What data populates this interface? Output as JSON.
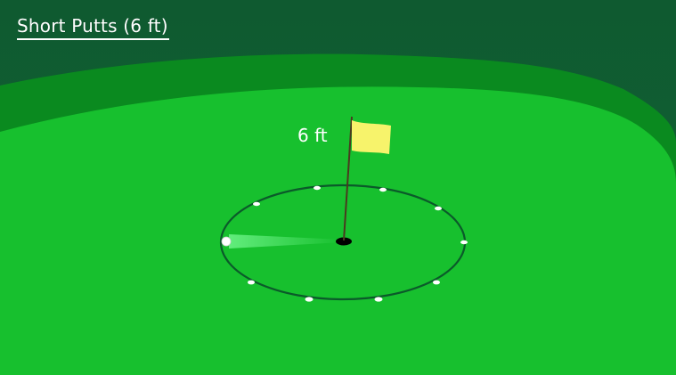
{
  "game": {
    "title": "Short Putts (6 ft)",
    "flag_label": "6 ft"
  },
  "colors": {
    "background": "#0f5a30",
    "fringe": "#0a8a1f",
    "green": "#17c02e",
    "flag": "#f7f36b",
    "circle": "#0b5a2a",
    "cup": "#000000",
    "ball": "#ffffff"
  },
  "icons": {
    "flag": "flag-icon",
    "cup": "cup-icon",
    "ball": "golf-ball-icon",
    "tee_markers": "tee-marker-icon"
  }
}
